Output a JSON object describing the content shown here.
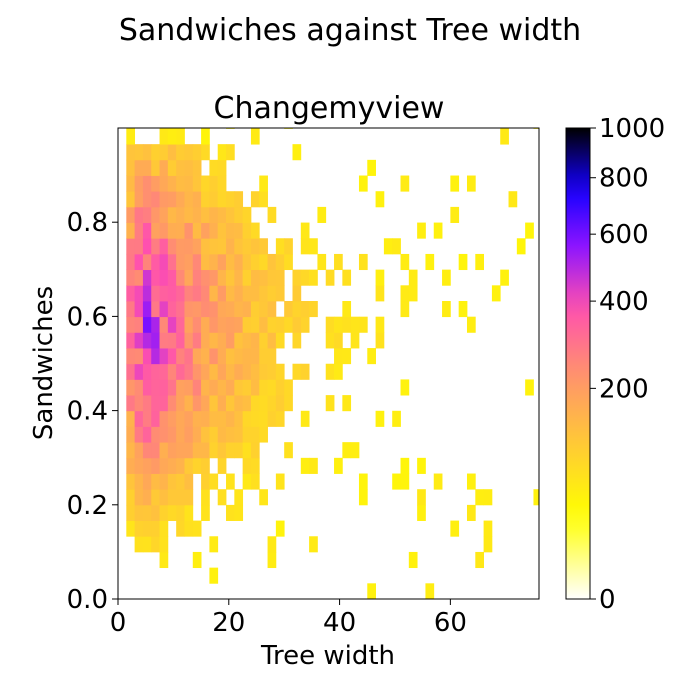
{
  "figure_title": "Sandwiches against Tree width",
  "chart_data": {
    "type": "heatmap",
    "title": "Changemyview",
    "xlabel": "Tree width",
    "ylabel": "Sandwiches",
    "xlim": [
      0,
      76
    ],
    "ylim": [
      0,
      1
    ],
    "x_ticks": [
      0,
      20,
      40,
      60
    ],
    "y_ticks": [
      0.0,
      0.2,
      0.4,
      0.6,
      0.8
    ],
    "y_tick_labels": [
      "0.0",
      "0.2",
      "0.4",
      "0.6",
      "0.8"
    ],
    "bin_size_x": 1.5,
    "bin_size_y": 0.0333,
    "colorbar": {
      "colormap": "gnuplot2_r",
      "scale": "power",
      "ticks": [
        0,
        200,
        400,
        600,
        800,
        1000
      ],
      "tick_labels": [
        "0",
        "200",
        "400",
        "600",
        "800",
        "1000"
      ],
      "range": [
        0,
        1000
      ]
    },
    "grid": false,
    "legend": "none"
  }
}
